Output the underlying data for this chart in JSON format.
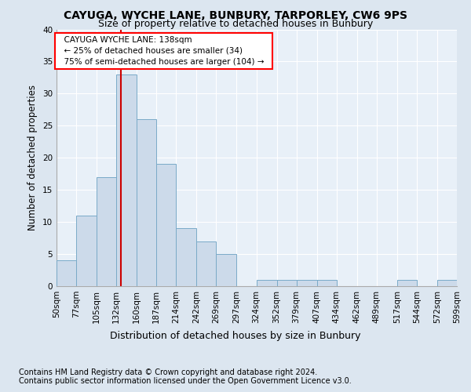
{
  "title1": "CAYUGA, WYCHE LANE, BUNBURY, TARPORLEY, CW6 9PS",
  "title2": "Size of property relative to detached houses in Bunbury",
  "xlabel": "Distribution of detached houses by size in Bunbury",
  "ylabel": "Number of detached properties",
  "footnote1": "Contains HM Land Registry data © Crown copyright and database right 2024.",
  "footnote2": "Contains public sector information licensed under the Open Government Licence v3.0.",
  "annotation_title": "CAYUGA WYCHE LANE: 138sqm",
  "annotation_line1": "← 25% of detached houses are smaller (34)",
  "annotation_line2": "75% of semi-detached houses are larger (104) →",
  "bar_color": "#ccdaea",
  "bar_edge_color": "#7aaac8",
  "vline_color": "#cc0000",
  "vline_x": 138,
  "bin_edges": [
    50,
    77,
    105,
    132,
    160,
    187,
    214,
    242,
    269,
    297,
    324,
    352,
    379,
    407,
    434,
    462,
    489,
    517,
    544,
    572,
    599
  ],
  "bar_heights": [
    4,
    11,
    17,
    33,
    26,
    19,
    9,
    7,
    5,
    0,
    1,
    1,
    1,
    1,
    0,
    0,
    0,
    1,
    0,
    1
  ],
  "ylim": [
    0,
    40
  ],
  "yticks": [
    0,
    5,
    10,
    15,
    20,
    25,
    30,
    35,
    40
  ],
  "background_color": "#dce6f0",
  "plot_bg_color": "#e8f0f8",
  "grid_color": "#ffffff",
  "title1_fontsize": 10,
  "title2_fontsize": 9,
  "xlabel_fontsize": 9,
  "ylabel_fontsize": 8.5,
  "tick_fontsize": 7.5,
  "footnote_fontsize": 7
}
